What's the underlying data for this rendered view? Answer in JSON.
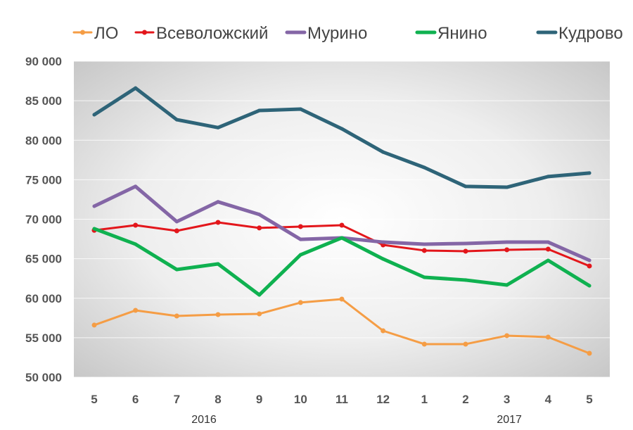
{
  "chart_data": {
    "type": "line",
    "title": "",
    "xlabel": "",
    "ylabel": "",
    "categories": [
      "5",
      "6",
      "7",
      "8",
      "9",
      "10",
      "11",
      "12",
      "1",
      "2",
      "3",
      "4",
      "5"
    ],
    "year_labels": [
      {
        "label": "2016",
        "at_index": 3
      },
      {
        "label": "2017",
        "at_index": 10.4
      }
    ],
    "ylim": [
      50000,
      90000
    ],
    "yticks": [
      "50 000",
      "55 000",
      "60 000",
      "65 000",
      "70 000",
      "75 000",
      "80 000",
      "85 000",
      "90 000"
    ],
    "ytick_values": [
      50000,
      55000,
      60000,
      65000,
      70000,
      75000,
      80000,
      85000,
      90000
    ],
    "grid": true,
    "legend_position": "top",
    "series": [
      {
        "name": "ЛО",
        "color": "#f59d45",
        "width": 3,
        "marker": true,
        "values": [
          56600,
          58460,
          57750,
          57930,
          58020,
          59450,
          59890,
          55880,
          54190,
          54190,
          55260,
          55080,
          53030
        ]
      },
      {
        "name": "Всеволожский",
        "color": "#e3161b",
        "width": 3,
        "marker": true,
        "values": [
          68600,
          69240,
          68530,
          69600,
          68900,
          69070,
          69240,
          66750,
          66040,
          65950,
          66130,
          66210,
          64080
        ]
      },
      {
        "name": "Мурино",
        "color": "#8466a6",
        "width": 5,
        "marker": false,
        "values": [
          71650,
          74150,
          69700,
          72200,
          70600,
          67450,
          67640,
          67100,
          66840,
          66930,
          67100,
          67100,
          64800
        ]
      },
      {
        "name": "Янино",
        "color": "#0fb150",
        "width": 5,
        "marker": false,
        "values": [
          68800,
          66840,
          63630,
          64340,
          60420,
          65500,
          67640,
          64970,
          62650,
          62300,
          61670,
          64790,
          61580
        ]
      },
      {
        "name": "Кудрово",
        "color": "#2e6478",
        "width": 5,
        "marker": false,
        "values": [
          83230,
          86600,
          82600,
          81600,
          83760,
          83940,
          81450,
          78500,
          76550,
          74150,
          74050,
          75400,
          75850
        ]
      }
    ]
  }
}
